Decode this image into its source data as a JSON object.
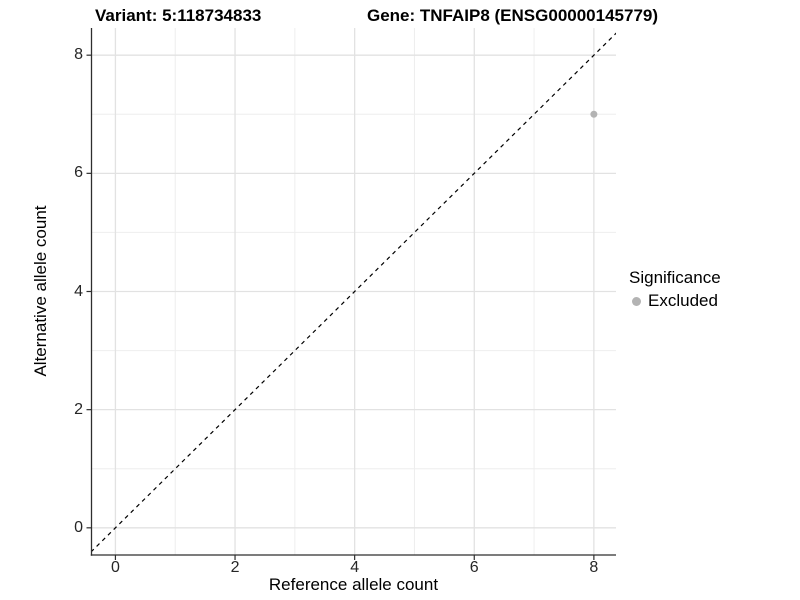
{
  "chart_data": {
    "type": "scatter",
    "title_left": "Variant: 5:118734833",
    "title_right": "Gene: TNFAIP8 (ENSG00000145779)",
    "xlabel": "Reference allele count",
    "ylabel": "Alternative allele count",
    "xlim": [
      -0.4,
      8.37
    ],
    "ylim": [
      -0.46,
      8.46
    ],
    "xticks": [
      0,
      2,
      4,
      6,
      8
    ],
    "yticks": [
      0,
      2,
      4,
      6,
      8
    ],
    "xticks_minor": [
      1,
      3,
      5,
      7
    ],
    "yticks_minor": [
      1,
      3,
      5,
      7
    ],
    "grid": true,
    "identity_line": {
      "slope": 1,
      "intercept": 0,
      "style": "dashed",
      "color": "#000000"
    },
    "series": [
      {
        "name": "Excluded",
        "color": "#b3b3b3",
        "points": [
          {
            "x": 8,
            "y": 7
          }
        ]
      }
    ],
    "legend": {
      "position": "right",
      "title": "Significance",
      "items": [
        {
          "label": "Excluded",
          "color": "#b3b3b3"
        }
      ]
    }
  },
  "colors": {
    "background": "#ffffff",
    "grid_major": "#e2e2e2",
    "grid_minor": "#eeeeee",
    "axis_line": "#2e2e2e",
    "tick_mark": "#2e2e2e",
    "tick_text": "#262626",
    "point": "#b3b3b3"
  }
}
